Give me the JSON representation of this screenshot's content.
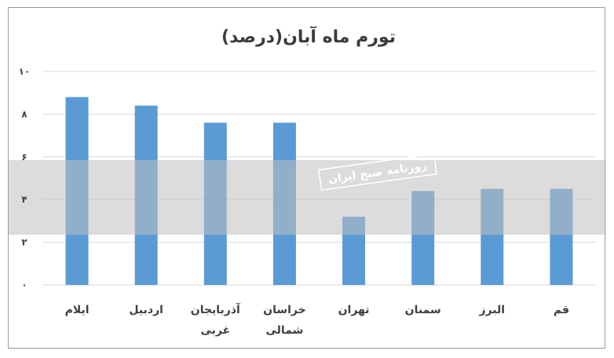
{
  "colors": {
    "bar": "#5b9bd5",
    "grid": "#d9d9d9",
    "band": "#bfbfbf"
  },
  "watermark": {
    "label": "روزنامه صبح ایران"
  },
  "chart_data": {
    "type": "bar",
    "title": "تورم ماه آبان(درصد)",
    "categories": [
      [
        "ایلام"
      ],
      [
        "اردبیل"
      ],
      [
        "آذربایجان",
        "غربی"
      ],
      [
        "خراسان",
        "شمالی"
      ],
      [
        "تهران"
      ],
      [
        "سمنان"
      ],
      [
        "البرز"
      ],
      [
        "قم"
      ]
    ],
    "values": [
      8.8,
      8.4,
      7.6,
      7.6,
      3.2,
      4.4,
      4.5,
      4.5
    ],
    "ylim": [
      0,
      10
    ],
    "yticks": [
      0,
      2,
      4,
      6,
      8,
      10
    ],
    "ytick_labels": [
      "۰",
      "۲",
      "۴",
      "۶",
      "۸",
      "۱۰"
    ],
    "grid": true,
    "legend": "none"
  }
}
